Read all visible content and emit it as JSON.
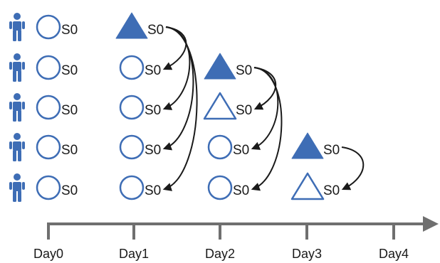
{
  "colors": {
    "node": "#3e6db5",
    "person": "#3e6db5",
    "axis": "#6f6f6f",
    "arrow": "#1a1a1a",
    "text": "#1a1a1a"
  },
  "people": [
    {
      "icon": "person-icon"
    },
    {
      "icon": "person-icon"
    },
    {
      "icon": "person-icon"
    },
    {
      "icon": "person-icon"
    },
    {
      "icon": "person-icon"
    }
  ],
  "axis": {
    "ticks": [
      "Day0",
      "Day1",
      "Day2",
      "Day3",
      "Day4"
    ]
  },
  "columns": [
    {
      "day": "Day0",
      "nodes": [
        {
          "row": 0,
          "shape": "circle-outline",
          "label": "S0"
        },
        {
          "row": 1,
          "shape": "circle-outline",
          "label": "S0"
        },
        {
          "row": 2,
          "shape": "circle-outline",
          "label": "S0"
        },
        {
          "row": 3,
          "shape": "circle-outline",
          "label": "S0"
        },
        {
          "row": 4,
          "shape": "circle-outline",
          "label": "S0"
        }
      ]
    },
    {
      "day": "Day1",
      "nodes": [
        {
          "row": 0,
          "shape": "triangle-filled",
          "label": "S0"
        },
        {
          "row": 1,
          "shape": "circle-outline",
          "label": "S0"
        },
        {
          "row": 2,
          "shape": "circle-outline",
          "label": "S0"
        },
        {
          "row": 3,
          "shape": "circle-outline",
          "label": "S0"
        },
        {
          "row": 4,
          "shape": "circle-outline",
          "label": "S0"
        }
      ]
    },
    {
      "day": "Day2",
      "nodes": [
        {
          "row": 1,
          "shape": "triangle-filled",
          "label": "S0"
        },
        {
          "row": 2,
          "shape": "triangle-outline",
          "label": "S0"
        },
        {
          "row": 3,
          "shape": "circle-outline",
          "label": "S0"
        },
        {
          "row": 4,
          "shape": "circle-outline",
          "label": "S0"
        }
      ]
    },
    {
      "day": "Day3",
      "nodes": [
        {
          "row": 3,
          "shape": "triangle-filled",
          "label": "S0"
        },
        {
          "row": 4,
          "shape": "triangle-outline",
          "label": "S0"
        }
      ]
    }
  ],
  "transmissions": [
    {
      "from": {
        "col": 1,
        "row": 0
      },
      "to": {
        "col": 1,
        "row": 1
      }
    },
    {
      "from": {
        "col": 1,
        "row": 0
      },
      "to": {
        "col": 1,
        "row": 2
      }
    },
    {
      "from": {
        "col": 1,
        "row": 0
      },
      "to": {
        "col": 1,
        "row": 3
      }
    },
    {
      "from": {
        "col": 1,
        "row": 0
      },
      "to": {
        "col": 1,
        "row": 4
      }
    },
    {
      "from": {
        "col": 2,
        "row": 1
      },
      "to": {
        "col": 2,
        "row": 2
      }
    },
    {
      "from": {
        "col": 2,
        "row": 1
      },
      "to": {
        "col": 2,
        "row": 3
      }
    },
    {
      "from": {
        "col": 2,
        "row": 1
      },
      "to": {
        "col": 2,
        "row": 4
      }
    },
    {
      "from": {
        "col": 3,
        "row": 3
      },
      "to": {
        "col": 3,
        "row": 4
      }
    }
  ]
}
